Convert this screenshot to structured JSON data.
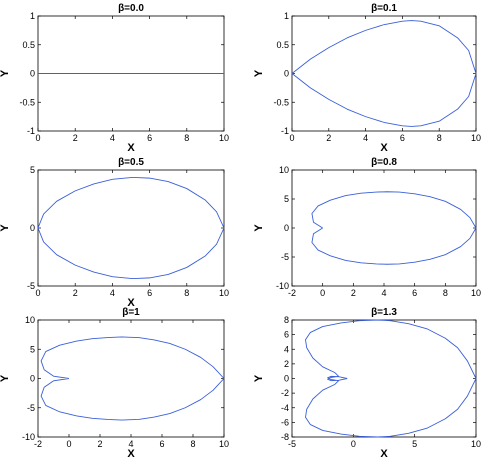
{
  "chart_data": [
    {
      "type": "line",
      "title": "β=0.0",
      "xlabel": "X",
      "ylabel": "Y",
      "xlim": [
        0,
        10
      ],
      "ylim": [
        -1,
        1
      ],
      "xticks": [
        "0",
        "2",
        "4",
        "6",
        "8",
        "10"
      ],
      "yticks": [
        "-1",
        "-0.5",
        "0",
        "0.5",
        "1"
      ],
      "grid": false,
      "color": "#3a5fd9",
      "beta": 0.0,
      "series": [
        {
          "x": [
            0,
            10
          ],
          "y": [
            0,
            0
          ]
        }
      ]
    },
    {
      "type": "line",
      "title": "β=0.1",
      "xlabel": "X",
      "ylabel": "Y",
      "xlim": [
        0,
        10
      ],
      "ylim": [
        -1,
        1
      ],
      "xticks": [
        "0",
        "2",
        "4",
        "6",
        "8",
        "10"
      ],
      "yticks": [
        "-1",
        "-0.5",
        "0",
        "0.5",
        "1"
      ],
      "grid": false,
      "color": "#3a5fd9",
      "beta": 0.1,
      "series": [
        {
          "x": [
            0,
            1,
            2,
            3,
            4,
            5,
            6,
            6.5,
            7,
            8,
            9,
            9.6,
            10,
            9.6,
            9,
            8,
            7,
            6.5,
            6,
            5,
            4,
            3,
            2,
            1,
            0
          ],
          "y": [
            0,
            0.25,
            0.45,
            0.62,
            0.75,
            0.85,
            0.91,
            0.92,
            0.91,
            0.83,
            0.62,
            0.4,
            0,
            -0.4,
            -0.62,
            -0.83,
            -0.91,
            -0.92,
            -0.91,
            -0.85,
            -0.75,
            -0.62,
            -0.45,
            -0.25,
            0
          ]
        }
      ]
    },
    {
      "type": "line",
      "title": "β=0.5",
      "xlabel": "X",
      "ylabel": "Y",
      "xlim": [
        0,
        10
      ],
      "ylim": [
        -5,
        5
      ],
      "xticks": [
        "0",
        "2",
        "4",
        "6",
        "8",
        "10"
      ],
      "yticks": [
        "-5",
        "0",
        "5"
      ],
      "grid": false,
      "color": "#3a5fd9",
      "beta": 0.5,
      "series": [
        {
          "x": [
            0,
            0.3,
            1,
            2,
            3,
            4,
            5,
            5.3,
            6,
            7,
            8,
            9,
            9.6,
            10,
            9.6,
            9,
            8,
            7,
            6,
            5.3,
            5,
            4,
            3,
            2,
            1,
            0.3,
            0
          ],
          "y": [
            0,
            1.2,
            2.3,
            3.2,
            3.8,
            4.2,
            4.35,
            4.35,
            4.3,
            4.0,
            3.4,
            2.4,
            1.4,
            0,
            -1.4,
            -2.4,
            -3.4,
            -4.0,
            -4.3,
            -4.35,
            -4.35,
            -4.2,
            -3.8,
            -3.2,
            -2.3,
            -1.2,
            0
          ]
        }
      ]
    },
    {
      "type": "line",
      "title": "β=0.8",
      "xlabel": "",
      "ylabel": "Y",
      "xlim": [
        -2,
        10
      ],
      "ylim": [
        -10,
        10
      ],
      "xticks": [
        "-2",
        "0",
        "2",
        "4",
        "6",
        "8",
        "10"
      ],
      "yticks": [
        "-10",
        "-5",
        "0",
        "5",
        "10"
      ],
      "grid": false,
      "color": "#3a5fd9",
      "beta": 0.8,
      "series": [
        {
          "x": [
            0,
            -0.6,
            -0.7,
            -0.3,
            0.5,
            1.5,
            2.5,
            3.5,
            4.2,
            5,
            6,
            7,
            8,
            9,
            9.6,
            10,
            9.6,
            9,
            8,
            7,
            6,
            5,
            4.2,
            3.5,
            2.5,
            1.5,
            0.5,
            -0.3,
            -0.7,
            -0.6,
            0
          ],
          "y": [
            0,
            1.0,
            2.5,
            3.8,
            4.8,
            5.6,
            6.0,
            6.2,
            6.25,
            6.2,
            5.9,
            5.4,
            4.6,
            3.2,
            1.8,
            0,
            -1.8,
            -3.2,
            -4.6,
            -5.4,
            -5.9,
            -6.2,
            -6.25,
            -6.2,
            -6.0,
            -5.6,
            -4.8,
            -3.8,
            -2.5,
            -1.0,
            0
          ]
        }
      ]
    },
    {
      "type": "line",
      "title": "β=1",
      "xlabel": "X",
      "ylabel": "Y",
      "xlim": [
        -2,
        10
      ],
      "ylim": [
        -10,
        10
      ],
      "xticks": [
        "-2",
        "0",
        "2",
        "4",
        "6",
        "8",
        "10"
      ],
      "yticks": [
        "-10",
        "-5",
        "0",
        "5",
        "10"
      ],
      "grid": false,
      "color": "#3a5fd9",
      "beta": 1.0,
      "series": [
        {
          "x": [
            0,
            -1,
            -1.6,
            -1.8,
            -1.5,
            -0.6,
            0.5,
            1.5,
            2.5,
            3.4,
            4.5,
            5.5,
            6.5,
            7.5,
            8.5,
            9.3,
            10,
            9.3,
            8.5,
            7.5,
            6.5,
            5.5,
            4.5,
            3.4,
            2.5,
            1.5,
            0.5,
            -0.6,
            -1.5,
            -1.8,
            -1.6,
            -1,
            0
          ],
          "y": [
            0,
            0.4,
            1.5,
            3.0,
            4.6,
            5.7,
            6.4,
            6.8,
            7.0,
            7.1,
            7.0,
            6.6,
            6.0,
            5.0,
            3.6,
            2.0,
            0,
            -2.0,
            -3.6,
            -5.0,
            -6.0,
            -6.6,
            -7.0,
            -7.1,
            -7.0,
            -6.8,
            -6.4,
            -5.7,
            -4.6,
            -3.0,
            -1.5,
            -0.4,
            0
          ]
        }
      ]
    },
    {
      "type": "line",
      "title": "β=1.3",
      "xlabel": "X",
      "ylabel": "Y",
      "xlim": [
        -5,
        10
      ],
      "ylim": [
        -8,
        8
      ],
      "xticks": [
        "-5",
        "0",
        "5",
        "10"
      ],
      "yticks": [
        "-8",
        "-6",
        "-4",
        "-2",
        "0",
        "2",
        "4",
        "6",
        "8"
      ],
      "grid": false,
      "color": "#3a5fd9",
      "beta": 1.3,
      "series": [
        {
          "x": [
            -0.5,
            -1.2,
            -1.8,
            -2.1,
            -1.8,
            -1.2,
            -1.5,
            -2.5,
            -3.3,
            -3.8,
            -3.9,
            -3.5,
            -2.5,
            -1.0,
            0.5,
            2.0,
            3.0,
            4.5,
            6.0,
            7.5,
            8.5,
            9.3,
            10,
            9.3,
            8.5,
            7.5,
            6.0,
            4.5,
            3.0,
            2.0,
            0.5,
            -1.0,
            -2.5,
            -3.5,
            -3.9,
            -3.8,
            -3.3,
            -2.5,
            -1.5,
            -1.2,
            -1.8,
            -2.1,
            -1.8,
            -1.2,
            -0.5
          ],
          "y": [
            0,
            0.25,
            0.3,
            0.1,
            -0.15,
            -0.3,
            -0.8,
            -1.6,
            -2.8,
            -4.2,
            -5.3,
            -6.3,
            -7.1,
            -7.6,
            -7.9,
            -8.0,
            -7.9,
            -7.5,
            -6.8,
            -5.5,
            -4.2,
            -2.4,
            0,
            2.4,
            4.2,
            5.5,
            6.8,
            7.5,
            7.9,
            8.0,
            7.9,
            7.6,
            7.1,
            6.3,
            5.3,
            4.2,
            2.8,
            1.6,
            0.8,
            0.3,
            0.15,
            -0.1,
            -0.3,
            -0.25,
            0
          ]
        }
      ]
    }
  ]
}
